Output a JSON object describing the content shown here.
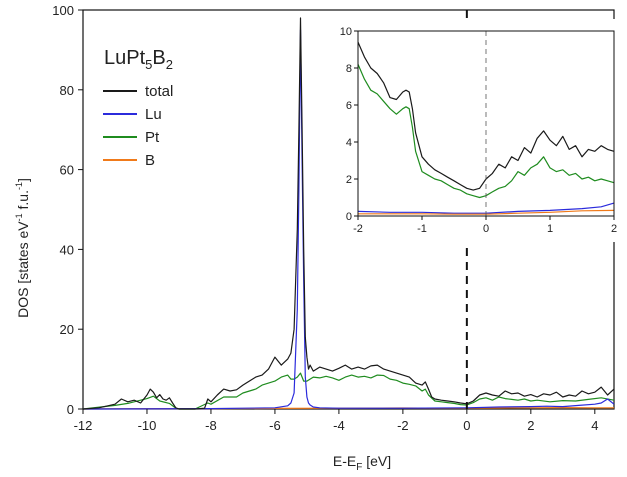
{
  "chart_data": {
    "type": "line",
    "title": "",
    "compound_label": {
      "base": "LuPt",
      "sub1": "5",
      "mid": "B",
      "sub2": "2"
    },
    "xlabel": {
      "main": "E-E",
      "sub": "F",
      "unit": " [eV]"
    },
    "ylabel": {
      "pre": "DOS [states eV",
      "sup1": "-1",
      "mid": " f.u.",
      "sup2": "-1",
      "post": "]"
    },
    "xlim": [
      -12,
      4.6
    ],
    "ylim": [
      0,
      100
    ],
    "xticks": [
      "-12",
      "-10",
      "-8",
      "-6",
      "-4",
      "-2",
      "0",
      "2",
      "4"
    ],
    "yticks": [
      "0",
      "20",
      "40",
      "60",
      "80",
      "100"
    ],
    "fermi_level": 0,
    "legend_position": "top-left",
    "series": [
      {
        "name": "total",
        "color": "#1a1a1a",
        "x": [
          -12,
          -11.5,
          -11,
          -10.8,
          -10.6,
          -10.4,
          -10.2,
          -10,
          -9.9,
          -9.8,
          -9.7,
          -9.6,
          -9.5,
          -9.4,
          -9.3,
          -9.2,
          -9.1,
          -9,
          -8.5,
          -8.2,
          -8.1,
          -8,
          -7.8,
          -7.6,
          -7.4,
          -7.2,
          -7,
          -6.8,
          -6.6,
          -6.4,
          -6.2,
          -6,
          -5.8,
          -5.6,
          -5.5,
          -5.4,
          -5.3,
          -5.25,
          -5.2,
          -5.15,
          -5.1,
          -5.05,
          -5,
          -4.95,
          -4.9,
          -4.8,
          -4.6,
          -4.4,
          -4.2,
          -4,
          -3.8,
          -3.6,
          -3.4,
          -3.2,
          -3,
          -2.8,
          -2.6,
          -2.4,
          -2.2,
          -2,
          -1.8,
          -1.6,
          -1.4,
          -1.3,
          -1.2,
          -1.1,
          -1,
          -0.8,
          -0.6,
          -0.4,
          -0.2,
          0,
          0.2,
          0.4,
          0.6,
          0.8,
          1,
          1.2,
          1.4,
          1.6,
          1.8,
          2,
          2.2,
          2.4,
          2.6,
          2.8,
          3,
          3.2,
          3.4,
          3.6,
          3.8,
          4,
          4.2,
          4.4,
          4.6
        ],
        "y": [
          0,
          0.3,
          1.2,
          2.5,
          1.8,
          2.2,
          1.5,
          3.5,
          5,
          4.2,
          2.8,
          3.6,
          2.5,
          2.2,
          2.8,
          1.5,
          0.3,
          0,
          0,
          0.2,
          2.5,
          1.8,
          3.5,
          5,
          4.5,
          4.8,
          6,
          7,
          8,
          8.5,
          10,
          13,
          11,
          12.5,
          14,
          20,
          45,
          70,
          98,
          70,
          40,
          18,
          13,
          10,
          11,
          9.5,
          10.5,
          10,
          9.5,
          10.2,
          11,
          10,
          10.5,
          10,
          10.8,
          11,
          10,
          9.5,
          9,
          8.5,
          8,
          6.5,
          6,
          6.8,
          5,
          3,
          2.5,
          2.2,
          2,
          1.8,
          1.5,
          1.3,
          2,
          3.5,
          4,
          3.5,
          3.2,
          4.5,
          3.8,
          4,
          3.2,
          3.6,
          3,
          3.8,
          3.5,
          4.2,
          3,
          3.5,
          3.2,
          4.5,
          3.8,
          4.2,
          5.5,
          3.5,
          5
        ]
      },
      {
        "name": "Lu",
        "color": "#2b2bdc",
        "x": [
          -12,
          -8,
          -6,
          -5.6,
          -5.5,
          -5.4,
          -5.3,
          -5.25,
          -5.2,
          -5.15,
          -5.1,
          -5.05,
          -5,
          -4.95,
          -4.9,
          -4.8,
          -4.6,
          -4,
          -2,
          0,
          1,
          2,
          2.5,
          3,
          3.5,
          4,
          4.2,
          4.4,
          4.6
        ],
        "y": [
          0,
          0.1,
          0.3,
          0.8,
          1.5,
          4,
          25,
          55,
          95,
          62,
          32,
          8,
          3,
          1.5,
          1,
          0.5,
          0.3,
          0.2,
          0.2,
          0.3,
          0.5,
          0.6,
          0.7,
          0.6,
          0.9,
          1.2,
          1.5,
          2.5,
          1.2
        ]
      },
      {
        "name": "Pt",
        "color": "#1f8c1f",
        "x": [
          -12,
          -11,
          -10.6,
          -10,
          -9.8,
          -9.6,
          -9.3,
          -9.1,
          -9,
          -8.5,
          -8.1,
          -8,
          -7.6,
          -7.2,
          -7,
          -6.6,
          -6.4,
          -6.2,
          -6,
          -5.8,
          -5.6,
          -5.5,
          -5.4,
          -5.3,
          -5.2,
          -5.1,
          -5,
          -4.9,
          -4.8,
          -4.6,
          -4.4,
          -4.2,
          -4,
          -3.8,
          -3.6,
          -3.4,
          -3.2,
          -3,
          -2.8,
          -2.6,
          -2.4,
          -2.2,
          -2,
          -1.8,
          -1.6,
          -1.4,
          -1.3,
          -1.2,
          -1,
          -0.8,
          -0.6,
          -0.4,
          -0.2,
          0,
          0.2,
          0.4,
          0.6,
          0.8,
          1,
          1.2,
          1.4,
          1.6,
          1.8,
          2,
          2.2,
          2.6,
          3,
          3.4,
          3.8,
          4.2,
          4.6
        ],
        "y": [
          0,
          0.9,
          1.4,
          2.6,
          3.2,
          2,
          1.4,
          0.2,
          0,
          0,
          1.5,
          1.2,
          3,
          3,
          4,
          5,
          6,
          6.5,
          7,
          8,
          8.5,
          7.5,
          7.5,
          8,
          9,
          7,
          7,
          7.5,
          8,
          7.8,
          8.2,
          7.8,
          7.2,
          8,
          8.5,
          8,
          8.2,
          7.8,
          8.5,
          8.4,
          7.5,
          7.2,
          6.5,
          6.2,
          5.8,
          4.5,
          5,
          3.5,
          2,
          1.8,
          1.6,
          1.4,
          1.1,
          1,
          1.6,
          2.5,
          2.8,
          2.2,
          3,
          2.6,
          2.4,
          2.2,
          2.5,
          2,
          2.2,
          1.8,
          2.1,
          2,
          2.4,
          2.8,
          2.2
        ]
      },
      {
        "name": "B",
        "color": "#f07a1a",
        "x": [
          -12,
          -10,
          -9,
          -8,
          -6,
          -4,
          -2,
          -1,
          0,
          1,
          2,
          3,
          4,
          4.6
        ],
        "y": [
          0,
          0.1,
          0.1,
          0.1,
          0.15,
          0.2,
          0.25,
          0.2,
          0.2,
          0.25,
          0.3,
          0.35,
          0.3,
          0.3
        ]
      }
    ],
    "inset": {
      "xlim": [
        -2,
        2
      ],
      "ylim": [
        0,
        10
      ],
      "xticks": [
        "-2",
        "-1",
        "0",
        "1",
        "2"
      ],
      "yticks": [
        "0",
        "2",
        "4",
        "6",
        "8",
        "10"
      ],
      "fermi_level": 0,
      "series": [
        {
          "name": "total",
          "color": "#1a1a1a",
          "x": [
            -2,
            -1.9,
            -1.8,
            -1.7,
            -1.6,
            -1.5,
            -1.4,
            -1.3,
            -1.25,
            -1.2,
            -1.15,
            -1.1,
            -1,
            -0.9,
            -0.8,
            -0.7,
            -0.6,
            -0.5,
            -0.4,
            -0.3,
            -0.2,
            -0.1,
            0,
            0.1,
            0.2,
            0.3,
            0.4,
            0.5,
            0.6,
            0.7,
            0.8,
            0.9,
            1,
            1.1,
            1.2,
            1.3,
            1.4,
            1.5,
            1.6,
            1.7,
            1.8,
            1.9,
            2
          ],
          "y": [
            9.4,
            8.6,
            8,
            7.7,
            7.2,
            6.4,
            6.3,
            6.7,
            6.8,
            6.7,
            5.8,
            4.5,
            3.2,
            2.8,
            2.5,
            2.3,
            2.1,
            1.9,
            1.7,
            1.5,
            1.4,
            1.5,
            2,
            2.3,
            2.8,
            2.6,
            3.2,
            3,
            3.7,
            3.4,
            4.2,
            4.6,
            4.1,
            3.8,
            4.3,
            3.6,
            3.8,
            3.2,
            3.6,
            3.5,
            3.8,
            3.6,
            3.5
          ]
        },
        {
          "name": "Pt",
          "color": "#1f8c1f",
          "x": [
            -2,
            -1.9,
            -1.8,
            -1.7,
            -1.6,
            -1.5,
            -1.4,
            -1.3,
            -1.25,
            -1.2,
            -1.15,
            -1.1,
            -1,
            -0.9,
            -0.8,
            -0.7,
            -0.6,
            -0.5,
            -0.4,
            -0.3,
            -0.2,
            -0.1,
            0,
            0.1,
            0.2,
            0.3,
            0.4,
            0.5,
            0.6,
            0.7,
            0.8,
            0.9,
            1,
            1.1,
            1.2,
            1.3,
            1.4,
            1.5,
            1.6,
            1.7,
            1.8,
            1.9,
            2
          ],
          "y": [
            8.2,
            7.4,
            6.8,
            6.6,
            6.2,
            5.8,
            5.5,
            5.8,
            5.9,
            5.8,
            4.8,
            3.5,
            2.4,
            2.2,
            2,
            1.9,
            1.7,
            1.5,
            1.4,
            1.2,
            1.1,
            1,
            1.1,
            1.3,
            1.5,
            1.6,
            1.9,
            2.4,
            2.2,
            2.6,
            2.8,
            3.2,
            2.6,
            2.4,
            2.5,
            2.2,
            2.3,
            2,
            2.1,
            1.9,
            2,
            1.9,
            1.8
          ]
        },
        {
          "name": "Lu",
          "color": "#2b2bdc",
          "x": [
            -2,
            -1.5,
            -1,
            -0.5,
            0,
            0.5,
            1,
            1.5,
            1.8,
            2
          ],
          "y": [
            0.25,
            0.2,
            0.2,
            0.15,
            0.15,
            0.25,
            0.3,
            0.4,
            0.5,
            0.7
          ]
        },
        {
          "name": "B",
          "color": "#f07a1a",
          "x": [
            -2,
            -1.5,
            -1,
            -0.5,
            0,
            0.5,
            1,
            1.5,
            2
          ],
          "y": [
            0.12,
            0.12,
            0.12,
            0.1,
            0.1,
            0.15,
            0.2,
            0.28,
            0.3
          ]
        }
      ]
    }
  }
}
